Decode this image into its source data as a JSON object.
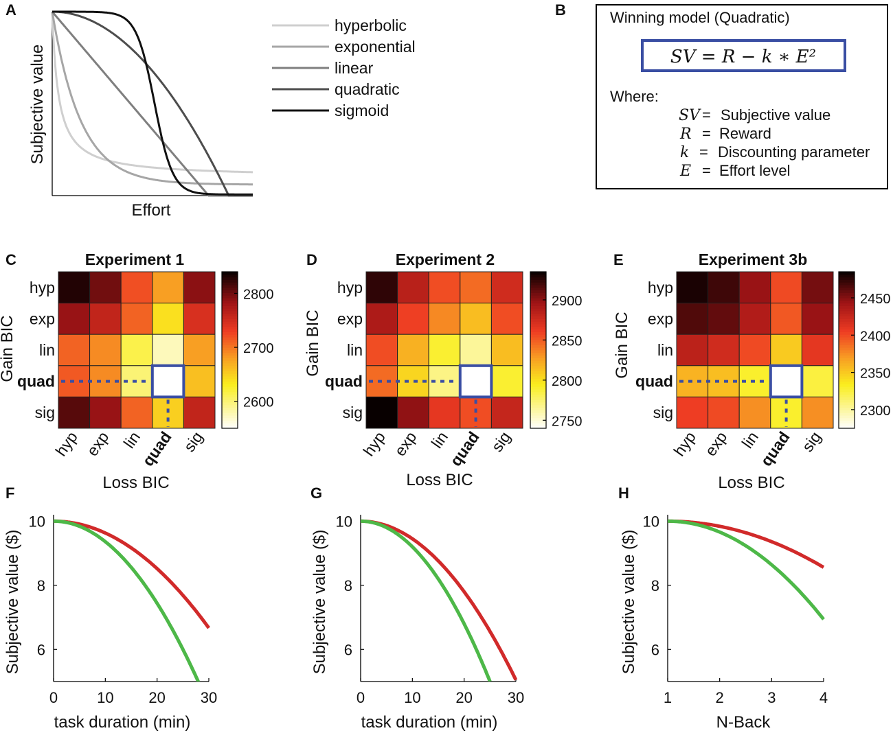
{
  "panels": {
    "A": "A",
    "B": "B",
    "C": "C",
    "D": "D",
    "E": "E",
    "F": "F",
    "G": "G",
    "H": "H"
  },
  "colors": {
    "highlight": "#3a4ea3",
    "curve_red": "#d12a2a",
    "curve_green": "#4db848"
  },
  "boxB": {
    "title": "Winning model (Quadratic)",
    "formula": "SV = R − k ∗ E²",
    "where": "Where:",
    "defs": [
      {
        "sym": "SV",
        "eq": "=",
        "text": "Subjective value"
      },
      {
        "sym": "R",
        "eq": "=",
        "text": "Reward"
      },
      {
        "sym": "k",
        "eq": "=",
        "text": "Discounting parameter"
      },
      {
        "sym": "E",
        "eq": "=",
        "text": "Effort level"
      }
    ]
  },
  "chart_data": [
    {
      "panel": "A",
      "type": "line",
      "xlabel": "Effort",
      "ylabel": "Subjective value",
      "series": [
        {
          "name": "hyperbolic",
          "color": "#cfcfcf"
        },
        {
          "name": "exponential",
          "color": "#a6a6a6"
        },
        {
          "name": "linear",
          "color": "#7f7f7f"
        },
        {
          "name": "quadratic",
          "color": "#4d4d4d"
        },
        {
          "name": "sigmoid",
          "color": "#111111"
        }
      ]
    },
    {
      "panel": "C",
      "type": "heatmap",
      "title": "Experiment 1",
      "xlabel": "Loss BIC",
      "ylabel": "Gain BIC",
      "rows": [
        "hyp",
        "exp",
        "lin",
        "quad",
        "sig"
      ],
      "cols": [
        "hyp",
        "exp",
        "lin",
        "quad",
        "sig"
      ],
      "highlight": "quad",
      "clim": [
        2550,
        2840
      ],
      "colorbar_ticks": [
        2600,
        2700,
        2800
      ],
      "values": [
        [
          2830,
          2800,
          2720,
          2680,
          2790
        ],
        [
          2785,
          2760,
          2710,
          2640,
          2745
        ],
        [
          2710,
          2690,
          2615,
          2575,
          2680
        ],
        [
          2715,
          2690,
          2600,
          2550,
          2660
        ],
        [
          2810,
          2785,
          2710,
          2650,
          2760
        ]
      ]
    },
    {
      "panel": "D",
      "type": "heatmap",
      "title": "Experiment 2",
      "xlabel": "Loss BIC",
      "ylabel": "Gain BIC",
      "rows": [
        "hyp",
        "exp",
        "lin",
        "quad",
        "sig"
      ],
      "cols": [
        "hyp",
        "exp",
        "lin",
        "quad",
        "sig"
      ],
      "highlight": "quad",
      "clim": [
        2740,
        2935
      ],
      "colorbar_ticks": [
        2750,
        2800,
        2850,
        2900
      ],
      "values": [
        [
          2925,
          2885,
          2855,
          2845,
          2875
        ],
        [
          2890,
          2860,
          2835,
          2815,
          2855
        ],
        [
          2855,
          2820,
          2790,
          2765,
          2815
        ],
        [
          2845,
          2805,
          2770,
          2740,
          2790
        ],
        [
          2935,
          2900,
          2865,
          2855,
          2880
        ]
      ]
    },
    {
      "panel": "E",
      "type": "heatmap",
      "title": "Experiment 3b",
      "xlabel": "Loss BIC",
      "ylabel": "Gain BIC",
      "rows": [
        "hyp",
        "exp",
        "lin",
        "quad",
        "sig"
      ],
      "cols": [
        "hyp",
        "exp",
        "lin",
        "quad",
        "sig"
      ],
      "highlight": "quad",
      "clim": [
        2275,
        2485
      ],
      "colorbar_ticks": [
        2300,
        2350,
        2400,
        2450
      ],
      "values": [
        [
          2480,
          2470,
          2445,
          2400,
          2455
        ],
        [
          2465,
          2460,
          2435,
          2395,
          2445
        ],
        [
          2430,
          2420,
          2400,
          2350,
          2410
        ],
        [
          2360,
          2355,
          2330,
          2275,
          2325
        ],
        [
          2405,
          2400,
          2375,
          2330,
          2375
        ]
      ]
    },
    {
      "panel": "F",
      "type": "line",
      "xlabel": "task duration (min)",
      "ylabel": "Subjective value ($)",
      "xlim": [
        0,
        30
      ],
      "ylim": [
        5,
        10.2
      ],
      "xticks": [
        0,
        10,
        20,
        30
      ],
      "yticks": [
        6,
        8,
        10
      ],
      "series": [
        {
          "name": "red",
          "k": 0.0037,
          "xmax": 30
        },
        {
          "name": "green",
          "k": 0.0064,
          "xmax": 28
        }
      ]
    },
    {
      "panel": "G",
      "type": "line",
      "xlabel": "task duration (min)",
      "ylabel": "Subjective value ($)",
      "xlim": [
        0,
        30
      ],
      "ylim": [
        5,
        10.2
      ],
      "xticks": [
        0,
        10,
        20,
        30
      ],
      "yticks": [
        6,
        8,
        10
      ],
      "series": [
        {
          "name": "red",
          "k": 0.0055,
          "xmax": 30
        },
        {
          "name": "green",
          "k": 0.008,
          "xmax": 25
        }
      ]
    },
    {
      "panel": "H",
      "type": "line",
      "xlabel": "N-Back",
      "ylabel": "Subjective value ($)",
      "xlim": [
        1,
        4
      ],
      "ylim": [
        5,
        10.2
      ],
      "xticks": [
        1,
        2,
        3,
        4
      ],
      "yticks": [
        6,
        8,
        10
      ],
      "series": [
        {
          "name": "red",
          "k": 0.16,
          "xmax": 4
        },
        {
          "name": "green",
          "k": 0.34,
          "xmax": 4
        }
      ]
    }
  ]
}
